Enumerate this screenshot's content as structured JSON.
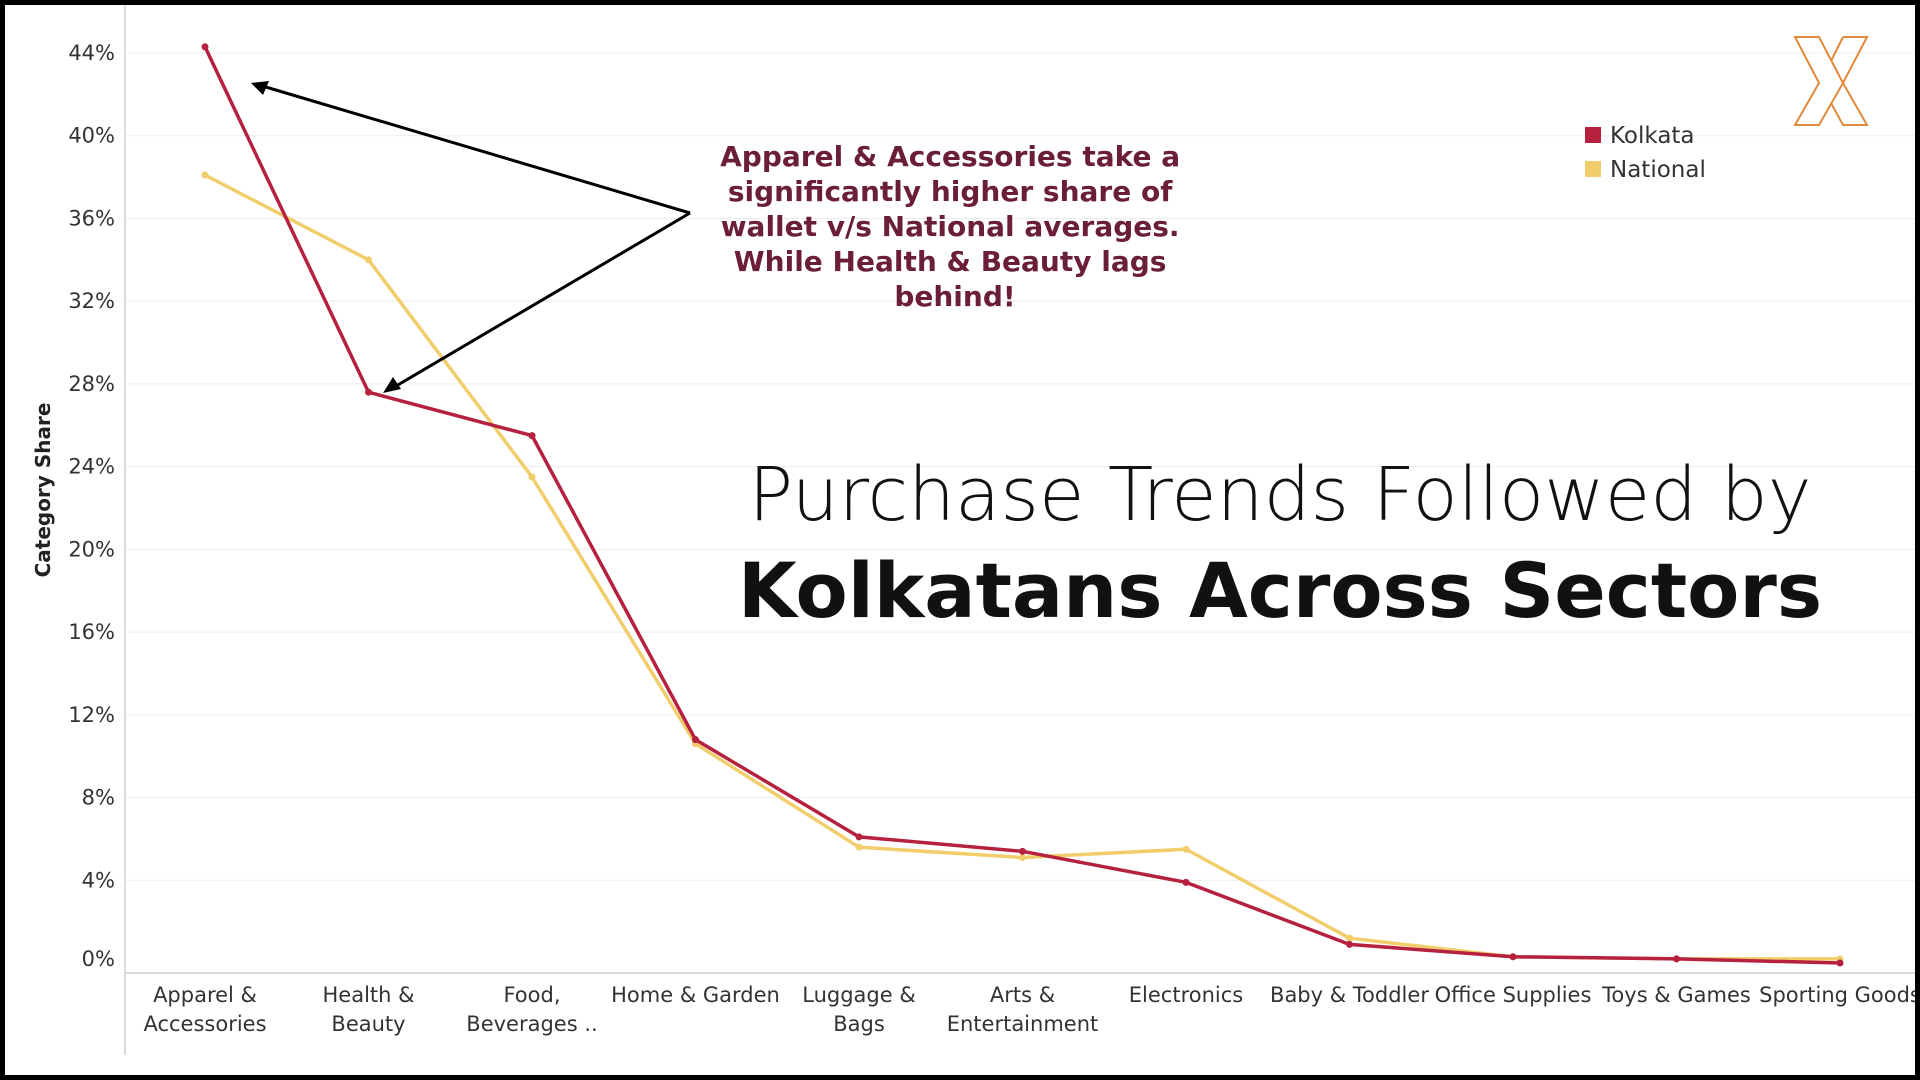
{
  "chart_data": {
    "type": "line",
    "categories": [
      [
        "Apparel &",
        "Accessories"
      ],
      [
        "Health &",
        "Beauty"
      ],
      [
        "Food,",
        "Beverages .."
      ],
      [
        "Home & Garden"
      ],
      [
        "Luggage &",
        "Bags"
      ],
      [
        "Arts &",
        "Entertainment"
      ],
      [
        "Electronics"
      ],
      [
        "Baby & Toddler"
      ],
      [
        "Office Supplies"
      ],
      [
        "Toys & Games"
      ],
      [
        "Sporting Goods"
      ]
    ],
    "series": [
      {
        "name": "Kolkata",
        "color": "#b5213f",
        "values": [
          44.3,
          27.6,
          25.5,
          10.8,
          6.1,
          5.4,
          3.9,
          0.9,
          0.3,
          0.2,
          0.0
        ]
      },
      {
        "name": "National",
        "color": "#f2cd6b",
        "values": [
          38.1,
          34.0,
          23.5,
          10.6,
          5.6,
          5.1,
          5.5,
          1.2,
          0.3,
          0.2,
          0.2
        ]
      }
    ],
    "ylabel": "Category Share",
    "yticks": [
      0,
      4,
      8,
      12,
      16,
      20,
      24,
      28,
      32,
      36,
      40,
      44
    ],
    "ytick_labels": [
      "0%",
      "4%",
      "8%",
      "12%",
      "16%",
      "20%",
      "24%",
      "28%",
      "32%",
      "36%",
      "40%",
      "44%"
    ],
    "ylim": [
      0,
      44
    ],
    "grid": "horizontal",
    "legend": "top-right",
    "annotation": [
      "Apparel & Accessories take a",
      "significantly higher share of",
      "wallet v/s National averages.",
      "While Health & Beauty lags",
      "behind!"
    ],
    "annotation_color": "#6b1e3a"
  },
  "title": {
    "line1": "Purchase Trends Followed by",
    "line2": "Kolkatans Across Sectors"
  },
  "logo": {
    "icon": "x-logo-icon",
    "color": "#e08a3c"
  }
}
